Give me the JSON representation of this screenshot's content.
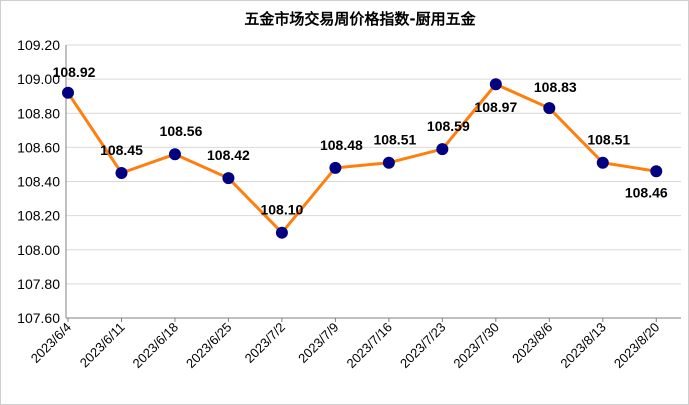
{
  "chart_data": {
    "type": "line",
    "title": "五金市场交易周价格指数-厨用五金",
    "xlabel": "",
    "ylabel": "",
    "categories": [
      "2023/6/4",
      "2023/6/11",
      "2023/6/18",
      "2023/6/25",
      "2023/7/2",
      "2023/7/9",
      "2023/7/16",
      "2023/7/23",
      "2023/7/30",
      "2023/8/6",
      "2023/8/13",
      "2023/8/20"
    ],
    "series": [
      {
        "values": [
          108.92,
          108.45,
          108.56,
          108.42,
          108.1,
          108.48,
          108.51,
          108.59,
          108.97,
          108.83,
          108.51,
          108.46
        ],
        "labels": [
          "108.92",
          "108.45",
          "108.56",
          "108.42",
          "108.10",
          "108.48",
          "108.51",
          "108.59",
          "108.97",
          "108.83",
          "108.51",
          "108.46"
        ]
      }
    ],
    "ylim": [
      107.6,
      109.2
    ],
    "yticks": [
      "109.20",
      "109.00",
      "108.80",
      "108.60",
      "108.40",
      "108.20",
      "108.00",
      "107.80",
      "107.60"
    ],
    "grid": true,
    "legend": "none",
    "colors": {
      "line": "#FF7F0E",
      "marker": "#000080",
      "grid": "#d9d9d9",
      "axis": "#808080"
    }
  }
}
